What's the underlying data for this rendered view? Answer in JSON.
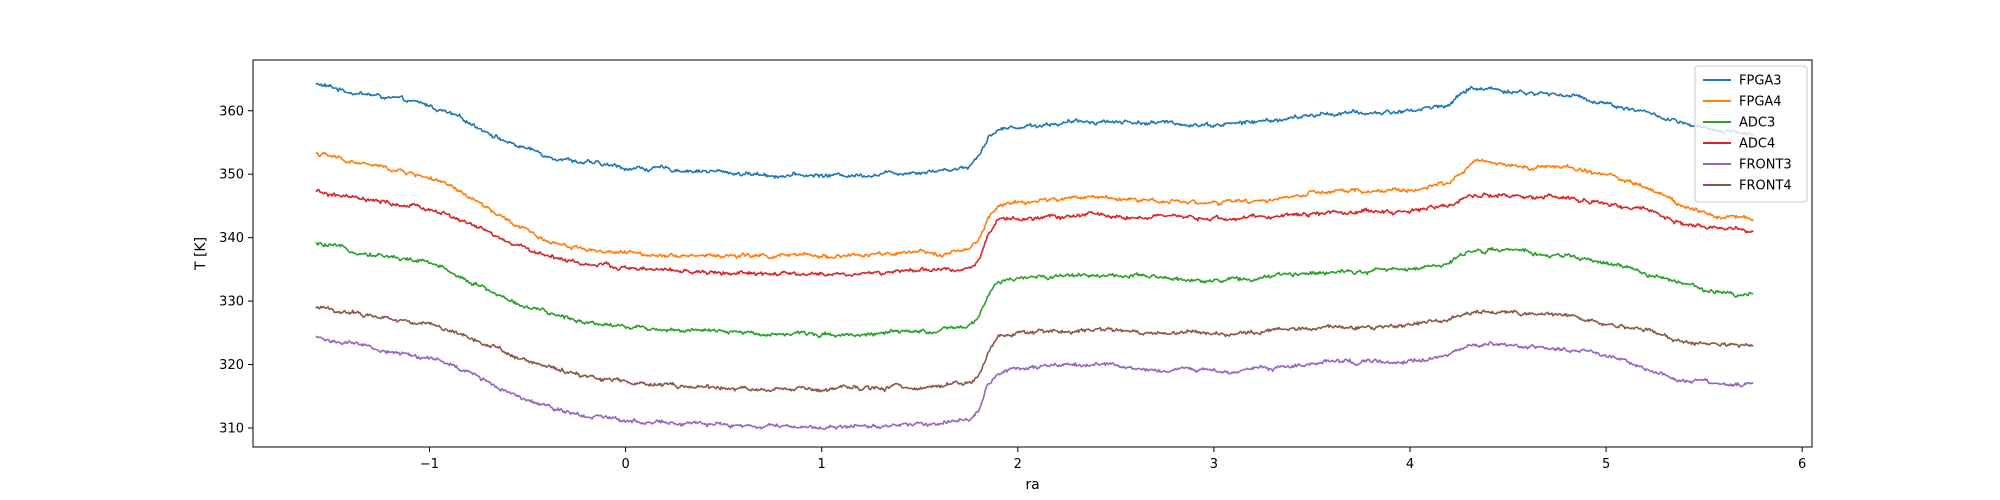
{
  "chart_data": {
    "type": "line",
    "title": "",
    "xlabel": "ra",
    "ylabel": "T [K]",
    "xlim": [
      -1.9,
      6.05
    ],
    "ylim": [
      307,
      368
    ],
    "xticks": [
      -1,
      0,
      1,
      2,
      3,
      4,
      5,
      6
    ],
    "xtick_labels": [
      "−1",
      "0",
      "1",
      "2",
      "3",
      "4",
      "5",
      "6"
    ],
    "yticks": [
      310,
      320,
      330,
      340,
      350,
      360
    ],
    "yticks_labels": [
      "310",
      "320",
      "330",
      "340",
      "350",
      "360"
    ],
    "grid": false,
    "legend_position": "top-right",
    "series": [
      {
        "name": "FPGA3",
        "color": "#1f77b4",
        "x": [
          -1.58,
          -1.4,
          -1.2,
          -1.0,
          -0.9,
          -0.75,
          -0.6,
          -0.4,
          -0.2,
          0.0,
          0.2,
          0.4,
          0.6,
          0.8,
          1.0,
          1.2,
          1.4,
          1.6,
          1.75,
          1.8,
          1.85,
          1.9,
          2.0,
          2.2,
          2.4,
          2.6,
          2.8,
          3.0,
          3.2,
          3.4,
          3.6,
          3.8,
          4.0,
          4.2,
          4.3,
          4.4,
          4.6,
          4.8,
          5.0,
          5.2,
          5.4,
          5.6,
          5.75
        ],
        "y": [
          364.2,
          363.0,
          362.0,
          360.8,
          359.5,
          357.5,
          355.0,
          353.0,
          351.8,
          351.0,
          350.8,
          350.5,
          350.1,
          349.8,
          349.8,
          349.9,
          350.3,
          350.6,
          351.2,
          353.0,
          356.0,
          357.0,
          357.5,
          358.0,
          358.4,
          358.2,
          358.0,
          357.8,
          358.2,
          358.8,
          359.6,
          359.6,
          360.0,
          361.0,
          363.5,
          363.5,
          362.8,
          362.5,
          361.2,
          359.8,
          357.8,
          356.5,
          356.5
        ]
      },
      {
        "name": "FPGA4",
        "color": "#ff7f0e",
        "x": [
          -1.58,
          -1.4,
          -1.2,
          -1.0,
          -0.9,
          -0.75,
          -0.6,
          -0.4,
          -0.2,
          0.0,
          0.2,
          0.4,
          0.6,
          0.8,
          1.0,
          1.2,
          1.4,
          1.6,
          1.75,
          1.8,
          1.85,
          1.9,
          2.0,
          2.2,
          2.4,
          2.6,
          2.8,
          3.0,
          3.2,
          3.4,
          3.6,
          3.8,
          4.0,
          4.2,
          4.3,
          4.4,
          4.6,
          4.8,
          5.0,
          5.2,
          5.4,
          5.6,
          5.75
        ],
        "y": [
          353.3,
          352.0,
          350.8,
          349.5,
          348.0,
          345.5,
          342.5,
          339.5,
          338.2,
          337.5,
          337.4,
          337.2,
          337.1,
          337.1,
          337.1,
          337.2,
          337.4,
          337.6,
          338.0,
          339.5,
          343.0,
          345.0,
          345.5,
          346.0,
          346.5,
          346.0,
          345.8,
          345.5,
          345.6,
          346.5,
          347.2,
          347.3,
          347.5,
          348.5,
          351.5,
          352.0,
          351.3,
          351.0,
          350.0,
          348.0,
          345.0,
          343.3,
          343.0
        ]
      },
      {
        "name": "ADC3",
        "color": "#2ca02c",
        "x": [
          -1.58,
          -1.4,
          -1.2,
          -1.0,
          -0.9,
          -0.75,
          -0.6,
          -0.4,
          -0.2,
          0.0,
          0.2,
          0.4,
          0.6,
          0.8,
          1.0,
          1.2,
          1.4,
          1.6,
          1.75,
          1.8,
          1.85,
          1.9,
          2.0,
          2.2,
          2.4,
          2.6,
          2.8,
          3.0,
          3.2,
          3.4,
          3.6,
          3.8,
          4.0,
          4.2,
          4.3,
          4.4,
          4.6,
          4.8,
          5.0,
          5.2,
          5.4,
          5.6,
          5.75
        ],
        "y": [
          339.0,
          338.0,
          337.0,
          336.0,
          334.8,
          332.5,
          330.2,
          328.0,
          326.8,
          326.0,
          325.6,
          325.2,
          325.0,
          324.9,
          324.8,
          324.8,
          325.0,
          325.3,
          325.8,
          327.5,
          331.0,
          332.8,
          333.5,
          334.0,
          334.2,
          333.8,
          333.5,
          333.3,
          333.5,
          334.2,
          334.8,
          334.8,
          335.0,
          336.0,
          337.8,
          338.2,
          337.6,
          337.0,
          336.0,
          334.5,
          332.5,
          331.3,
          331.2
        ]
      },
      {
        "name": "ADC4",
        "color": "#d62728",
        "x": [
          -1.58,
          -1.4,
          -1.2,
          -1.0,
          -0.9,
          -0.75,
          -0.6,
          -0.4,
          -0.2,
          0.0,
          0.2,
          0.4,
          0.6,
          0.8,
          1.0,
          1.2,
          1.4,
          1.6,
          1.75,
          1.8,
          1.85,
          1.9,
          2.0,
          2.2,
          2.4,
          2.6,
          2.8,
          3.0,
          3.2,
          3.4,
          3.6,
          3.8,
          4.0,
          4.2,
          4.3,
          4.4,
          4.6,
          4.8,
          5.0,
          5.2,
          5.4,
          5.6,
          5.75
        ],
        "y": [
          347.2,
          346.2,
          345.3,
          344.5,
          343.5,
          341.5,
          339.2,
          337.2,
          335.8,
          335.2,
          334.8,
          334.5,
          334.3,
          334.2,
          334.2,
          334.3,
          334.6,
          334.9,
          335.2,
          336.5,
          340.5,
          342.5,
          343.0,
          343.3,
          343.6,
          343.3,
          343.1,
          343.0,
          343.1,
          343.6,
          344.0,
          344.1,
          344.2,
          345.2,
          346.5,
          346.8,
          346.5,
          346.2,
          345.3,
          344.2,
          342.2,
          341.2,
          341.0
        ]
      },
      {
        "name": "FRONT3",
        "color": "#9467bd",
        "x": [
          -1.58,
          -1.4,
          -1.2,
          -1.0,
          -0.9,
          -0.75,
          -0.6,
          -0.4,
          -0.2,
          0.0,
          0.2,
          0.4,
          0.6,
          0.8,
          1.0,
          1.2,
          1.4,
          1.6,
          1.75,
          1.8,
          1.85,
          1.9,
          2.0,
          2.2,
          2.4,
          2.6,
          2.8,
          3.0,
          3.2,
          3.4,
          3.6,
          3.8,
          4.0,
          4.2,
          4.3,
          4.4,
          4.6,
          4.8,
          5.0,
          5.2,
          5.4,
          5.6,
          5.75
        ],
        "y": [
          324.3,
          323.2,
          322.0,
          321.0,
          320.0,
          318.0,
          315.8,
          313.5,
          312.0,
          311.3,
          311.0,
          310.5,
          310.3,
          310.2,
          310.1,
          310.2,
          310.5,
          310.9,
          311.3,
          313.0,
          316.8,
          318.8,
          319.3,
          319.7,
          320.0,
          319.4,
          319.2,
          319.0,
          319.2,
          319.8,
          320.5,
          320.2,
          320.6,
          321.5,
          323.0,
          323.3,
          322.8,
          322.5,
          321.2,
          319.2,
          317.5,
          317.0,
          316.9
        ]
      },
      {
        "name": "FRONT4",
        "color": "#8c564b",
        "x": [
          -1.58,
          -1.4,
          -1.2,
          -1.0,
          -0.9,
          -0.75,
          -0.6,
          -0.4,
          -0.2,
          0.0,
          0.2,
          0.4,
          0.6,
          0.8,
          1.0,
          1.2,
          1.4,
          1.6,
          1.75,
          1.8,
          1.85,
          1.9,
          2.0,
          2.2,
          2.4,
          2.6,
          2.8,
          3.0,
          3.2,
          3.4,
          3.6,
          3.8,
          4.0,
          4.2,
          4.3,
          4.4,
          4.6,
          4.8,
          5.0,
          5.2,
          5.4,
          5.6,
          5.75
        ],
        "y": [
          328.9,
          328.2,
          327.3,
          326.3,
          325.5,
          323.8,
          321.8,
          319.5,
          318.2,
          317.4,
          316.8,
          316.3,
          316.1,
          316.0,
          316.0,
          316.1,
          316.4,
          316.7,
          317.0,
          318.2,
          322.3,
          324.2,
          325.0,
          325.2,
          325.5,
          325.2,
          325.0,
          324.9,
          325.1,
          325.6,
          326.0,
          326.0,
          326.2,
          327.2,
          328.2,
          328.4,
          328.0,
          327.7,
          326.6,
          325.3,
          323.8,
          323.1,
          323.0
        ]
      }
    ]
  }
}
